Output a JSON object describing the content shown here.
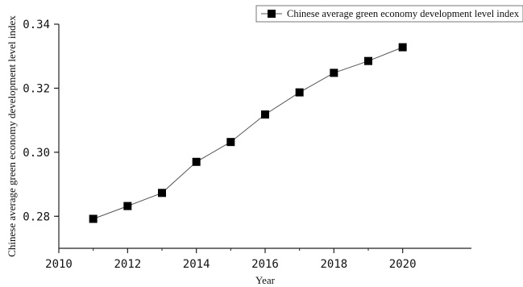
{
  "chart_data": {
    "type": "line",
    "xlabel": "Year",
    "ylabel": "Chinese average green economy development level index",
    "xlim": [
      2010,
      2022
    ],
    "ylim": [
      0.27,
      0.34
    ],
    "x_ticks": [
      2010,
      2012,
      2014,
      2016,
      2018,
      2020
    ],
    "y_ticks": [
      0.28,
      0.3,
      0.32,
      0.34
    ],
    "x_tick_labels": [
      "2010",
      "2012",
      "2014",
      "2016",
      "2018",
      "2020"
    ],
    "y_tick_labels": [
      "0.28",
      "0.30",
      "0.32",
      "0.34"
    ],
    "legend_position": "top-right",
    "series": [
      {
        "name": "Chinese average green economy development level index",
        "marker": "square",
        "color": "#000000",
        "line_color": "#555555",
        "x": [
          2011,
          2012,
          2013,
          2014,
          2015,
          2016,
          2017,
          2018,
          2019,
          2020
        ],
        "y": [
          0.2792,
          0.2832,
          0.2873,
          0.297,
          0.3032,
          0.3118,
          0.3187,
          0.3248,
          0.3285,
          0.3328
        ]
      }
    ]
  }
}
